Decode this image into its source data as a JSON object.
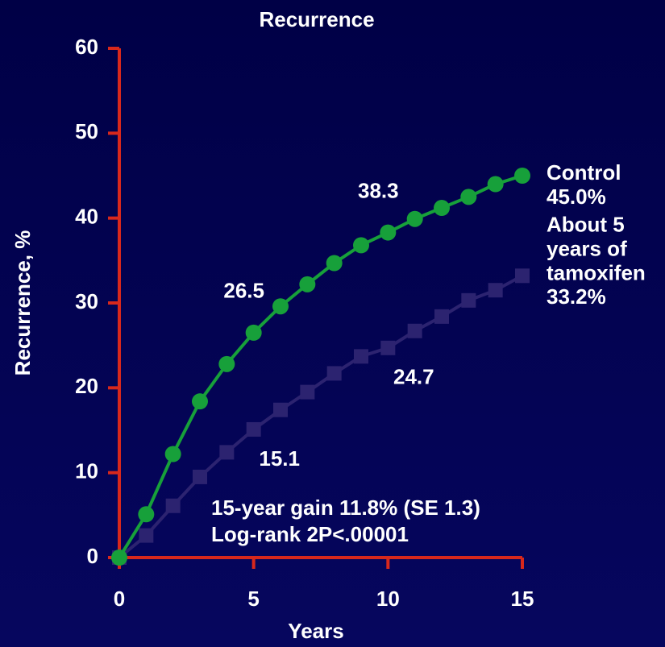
{
  "chart_data": {
    "type": "line",
    "title": "Recurrence",
    "x_label": "Years",
    "y_label": "Recurrence, %",
    "x": [
      0,
      1,
      2,
      3,
      4,
      5,
      6,
      7,
      8,
      9,
      10,
      11,
      12,
      13,
      14,
      15
    ],
    "series": [
      {
        "name": "Control",
        "color": "#17a03a",
        "marker": "circle",
        "values": [
          0,
          5.1,
          12.2,
          18.4,
          22.8,
          26.5,
          29.6,
          32.2,
          34.7,
          36.8,
          38.3,
          39.9,
          41.2,
          42.5,
          44.0,
          45.0
        ],
        "value_labels": [
          null,
          null,
          null,
          null,
          null,
          "26.5",
          null,
          null,
          null,
          null,
          "38.3",
          null,
          null,
          null,
          null,
          "45.0%"
        ]
      },
      {
        "name": "About 5 years of tamoxifen",
        "color": "#2c2370",
        "marker": "square",
        "values": [
          0,
          2.6,
          6.1,
          9.5,
          12.4,
          15.1,
          17.4,
          19.5,
          21.7,
          23.7,
          24.7,
          26.7,
          28.4,
          30.3,
          31.5,
          33.2
        ],
        "value_labels": [
          null,
          null,
          null,
          null,
          null,
          "15.1",
          null,
          null,
          null,
          null,
          "24.7",
          null,
          null,
          null,
          null,
          "33.2%"
        ]
      }
    ],
    "xlim": [
      0,
      15
    ],
    "xticks": [
      0,
      5,
      10,
      15
    ],
    "ylim": [
      0,
      60
    ],
    "yticks": [
      0,
      10,
      20,
      30,
      40,
      50,
      60
    ],
    "axis_color": "#d8281c",
    "annotations": [
      "15-year gain 11.8% (SE 1.3)",
      "Log-rank 2P<.00001"
    ]
  }
}
